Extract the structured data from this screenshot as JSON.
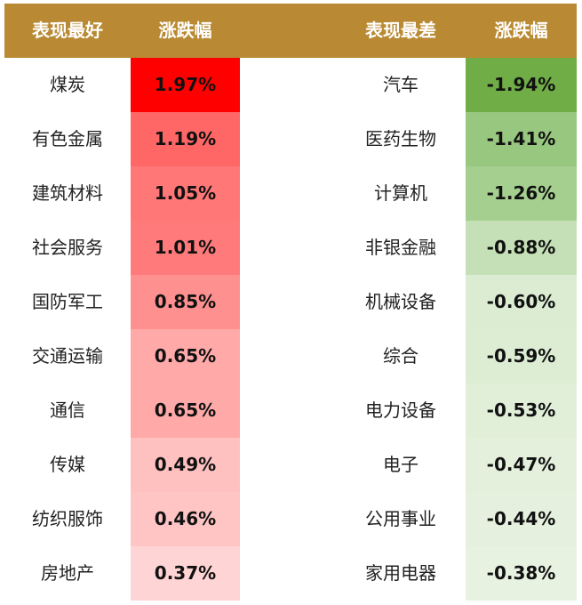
{
  "headers": {
    "best": "表现最好",
    "change_left": "涨跌幅",
    "worst": "表现最差",
    "change_right": "涨跌幅"
  },
  "colors": {
    "header_bg": "#b98a33",
    "best_cells": [
      "#ff0000",
      "#ff6666",
      "#ff7777",
      "#ff7b7b",
      "#ff9090",
      "#ffa9a9",
      "#ffa9a9",
      "#ffc0c0",
      "#ffc4c4",
      "#ffd4d4"
    ],
    "worst_cells": [
      "#70ad47",
      "#98c77f",
      "#a5cf8f",
      "#c5e0b6",
      "#dcecd3",
      "#ddedd4",
      "#e1efd9",
      "#e4f0dc",
      "#e5f1de",
      "#e7f2e1"
    ]
  },
  "best": [
    {
      "name": "煤炭",
      "change": "1.97%"
    },
    {
      "name": "有色金属",
      "change": "1.19%"
    },
    {
      "name": "建筑材料",
      "change": "1.05%"
    },
    {
      "name": "社会服务",
      "change": "1.01%"
    },
    {
      "name": "国防军工",
      "change": "0.85%"
    },
    {
      "name": "交通运输",
      "change": "0.65%"
    },
    {
      "name": "通信",
      "change": "0.65%"
    },
    {
      "name": "传媒",
      "change": "0.49%"
    },
    {
      "name": "纺织服饰",
      "change": "0.46%"
    },
    {
      "name": "房地产",
      "change": "0.37%"
    }
  ],
  "worst": [
    {
      "name": "汽车",
      "change": "-1.94%"
    },
    {
      "name": "医药生物",
      "change": "-1.41%"
    },
    {
      "name": "计算机",
      "change": "-1.26%"
    },
    {
      "name": "非银金融",
      "change": "-0.88%"
    },
    {
      "name": "机械设备",
      "change": "-0.60%"
    },
    {
      "name": "综合",
      "change": "-0.59%"
    },
    {
      "name": "电力设备",
      "change": "-0.53%"
    },
    {
      "name": "电子",
      "change": "-0.47%"
    },
    {
      "name": "公用事业",
      "change": "-0.44%"
    },
    {
      "name": "家用电器",
      "change": "-0.38%"
    }
  ]
}
